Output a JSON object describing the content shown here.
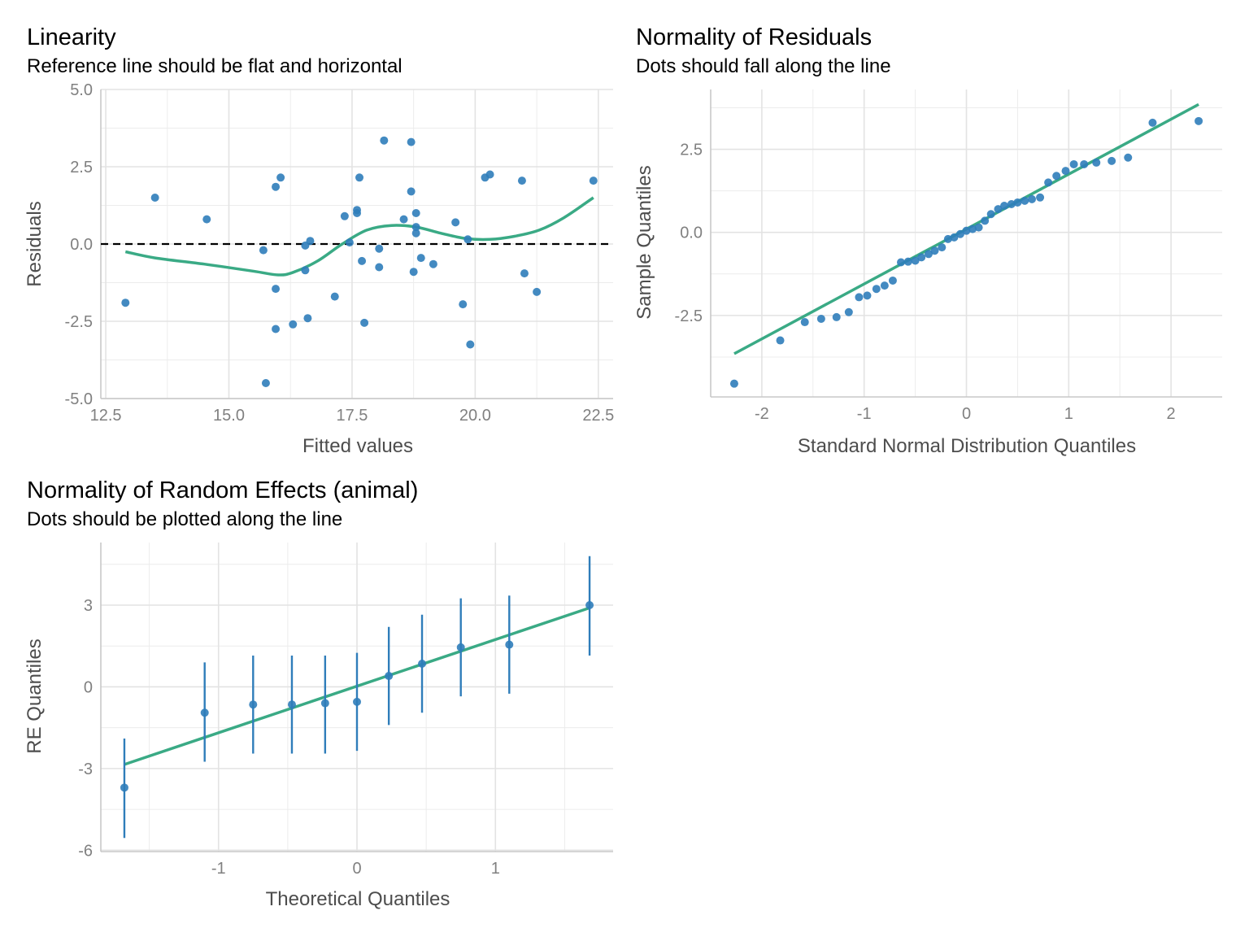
{
  "colors": {
    "points": "#2f7dba",
    "line": "#3aaa85",
    "errorbar": "#2f7dba",
    "reference": "#000000"
  },
  "chart_data": [
    {
      "type": "scatter",
      "title": "Linearity",
      "subtitle": "Reference line should be flat and horizontal",
      "xlabel": "Fitted values",
      "ylabel": "Residuals",
      "xlim": [
        12.4,
        22.8
      ],
      "ylim": [
        -5.0,
        5.0
      ],
      "xticks": [
        12.5,
        15.0,
        17.5,
        20.0,
        22.5
      ],
      "xtick_labels": [
        "12.5",
        "15.0",
        "17.5",
        "20.0",
        "22.5"
      ],
      "yticks": [
        -5.0,
        -2.5,
        0.0,
        2.5,
        5.0
      ],
      "ytick_labels": [
        "-5.0",
        "-2.5",
        "0.0",
        "2.5",
        "5.0"
      ],
      "reference_y": 0,
      "grid": true,
      "points": [
        {
          "x": 12.9,
          "y": -1.9
        },
        {
          "x": 13.5,
          "y": 1.5
        },
        {
          "x": 14.55,
          "y": 0.8
        },
        {
          "x": 15.7,
          "y": -0.2
        },
        {
          "x": 15.75,
          "y": -4.5
        },
        {
          "x": 15.95,
          "y": -1.45
        },
        {
          "x": 15.95,
          "y": -2.75
        },
        {
          "x": 15.95,
          "y": 1.85
        },
        {
          "x": 16.05,
          "y": 2.15
        },
        {
          "x": 16.3,
          "y": -2.6
        },
        {
          "x": 16.55,
          "y": -0.05
        },
        {
          "x": 16.55,
          "y": -0.85
        },
        {
          "x": 16.6,
          "y": -2.4
        },
        {
          "x": 16.65,
          "y": 0.1
        },
        {
          "x": 17.15,
          "y": -1.7
        },
        {
          "x": 17.35,
          "y": 0.9
        },
        {
          "x": 17.45,
          "y": 0.05
        },
        {
          "x": 17.6,
          "y": 1.0
        },
        {
          "x": 17.6,
          "y": 1.1
        },
        {
          "x": 17.65,
          "y": 2.15
        },
        {
          "x": 17.7,
          "y": -0.55
        },
        {
          "x": 17.75,
          "y": -2.55
        },
        {
          "x": 18.05,
          "y": -0.15
        },
        {
          "x": 18.05,
          "y": -0.75
        },
        {
          "x": 18.15,
          "y": 3.35
        },
        {
          "x": 18.55,
          "y": 0.8
        },
        {
          "x": 18.7,
          "y": 1.7
        },
        {
          "x": 18.7,
          "y": 3.3
        },
        {
          "x": 18.75,
          "y": -0.9
        },
        {
          "x": 18.8,
          "y": 1.0
        },
        {
          "x": 18.8,
          "y": 0.55
        },
        {
          "x": 18.8,
          "y": 0.35
        },
        {
          "x": 18.9,
          "y": -0.45
        },
        {
          "x": 19.15,
          "y": -0.65
        },
        {
          "x": 19.6,
          "y": 0.7
        },
        {
          "x": 19.75,
          "y": -1.95
        },
        {
          "x": 19.85,
          "y": 0.15
        },
        {
          "x": 19.9,
          "y": -3.25
        },
        {
          "x": 20.2,
          "y": 2.15
        },
        {
          "x": 20.3,
          "y": 2.25
        },
        {
          "x": 20.95,
          "y": 2.05
        },
        {
          "x": 21.0,
          "y": -0.95
        },
        {
          "x": 21.25,
          "y": -1.55
        },
        {
          "x": 22.4,
          "y": 2.05
        }
      ],
      "smooth_line": [
        {
          "x": 12.9,
          "y": -0.25
        },
        {
          "x": 13.5,
          "y": -0.45
        },
        {
          "x": 14.5,
          "y": -0.65
        },
        {
          "x": 15.5,
          "y": -0.88
        },
        {
          "x": 16.0,
          "y": -1.0
        },
        {
          "x": 16.3,
          "y": -0.92
        },
        {
          "x": 16.8,
          "y": -0.55
        },
        {
          "x": 17.3,
          "y": 0.0
        },
        {
          "x": 17.8,
          "y": 0.45
        },
        {
          "x": 18.3,
          "y": 0.6
        },
        {
          "x": 18.8,
          "y": 0.55
        },
        {
          "x": 19.3,
          "y": 0.35
        },
        {
          "x": 19.8,
          "y": 0.18
        },
        {
          "x": 20.3,
          "y": 0.15
        },
        {
          "x": 20.8,
          "y": 0.25
        },
        {
          "x": 21.3,
          "y": 0.45
        },
        {
          "x": 21.8,
          "y": 0.85
        },
        {
          "x": 22.4,
          "y": 1.5
        }
      ]
    },
    {
      "type": "scatter",
      "title": "Normality of Residuals",
      "subtitle": "Dots should fall along the line",
      "xlabel": "Standard Normal Distribution Quantiles",
      "ylabel": "Sample Quantiles",
      "xlim": [
        -2.5,
        2.5
      ],
      "ylim": [
        -4.95,
        4.3
      ],
      "xticks": [
        -2,
        -1,
        0,
        1,
        2
      ],
      "xtick_labels": [
        "-2",
        "-1",
        "0",
        "1",
        "2"
      ],
      "yticks": [
        -2.5,
        0.0,
        2.5
      ],
      "ytick_labels": [
        "-2.5",
        "0.0",
        "2.5"
      ],
      "grid": true,
      "points": [
        {
          "x": -2.27,
          "y": -4.55
        },
        {
          "x": -1.82,
          "y": -3.25
        },
        {
          "x": -1.58,
          "y": -2.7
        },
        {
          "x": -1.42,
          "y": -2.6
        },
        {
          "x": -1.27,
          "y": -2.55
        },
        {
          "x": -1.15,
          "y": -2.4
        },
        {
          "x": -1.05,
          "y": -1.95
        },
        {
          "x": -0.97,
          "y": -1.9
        },
        {
          "x": -0.88,
          "y": -1.7
        },
        {
          "x": -0.8,
          "y": -1.6
        },
        {
          "x": -0.72,
          "y": -1.45
        },
        {
          "x": -0.64,
          "y": -0.9
        },
        {
          "x": -0.57,
          "y": -0.88
        },
        {
          "x": -0.5,
          "y": -0.85
        },
        {
          "x": -0.44,
          "y": -0.75
        },
        {
          "x": -0.37,
          "y": -0.65
        },
        {
          "x": -0.31,
          "y": -0.55
        },
        {
          "x": -0.24,
          "y": -0.45
        },
        {
          "x": -0.18,
          "y": -0.2
        },
        {
          "x": -0.12,
          "y": -0.15
        },
        {
          "x": -0.06,
          "y": -0.05
        },
        {
          "x": 0.0,
          "y": 0.05
        },
        {
          "x": 0.06,
          "y": 0.1
        },
        {
          "x": 0.12,
          "y": 0.15
        },
        {
          "x": 0.18,
          "y": 0.35
        },
        {
          "x": 0.24,
          "y": 0.55
        },
        {
          "x": 0.31,
          "y": 0.7
        },
        {
          "x": 0.37,
          "y": 0.8
        },
        {
          "x": 0.44,
          "y": 0.85
        },
        {
          "x": 0.5,
          "y": 0.9
        },
        {
          "x": 0.57,
          "y": 0.95
        },
        {
          "x": 0.64,
          "y": 1.0
        },
        {
          "x": 0.72,
          "y": 1.05
        },
        {
          "x": 0.8,
          "y": 1.5
        },
        {
          "x": 0.88,
          "y": 1.7
        },
        {
          "x": 0.97,
          "y": 1.85
        },
        {
          "x": 1.05,
          "y": 2.05
        },
        {
          "x": 1.15,
          "y": 2.05
        },
        {
          "x": 1.27,
          "y": 2.1
        },
        {
          "x": 1.42,
          "y": 2.15
        },
        {
          "x": 1.58,
          "y": 2.25
        },
        {
          "x": 1.82,
          "y": 3.3
        },
        {
          "x": 2.27,
          "y": 3.35
        }
      ],
      "reference_line": [
        {
          "x": -2.27,
          "y": -3.65
        },
        {
          "x": 2.27,
          "y": 3.85
        }
      ]
    },
    {
      "type": "scatter",
      "title": "Normality of Random Effects (animal)",
      "subtitle": "Dots should be plotted along the line",
      "xlabel": "Theoretical Quantiles",
      "ylabel": "RE Quantiles",
      "xlim": [
        -1.85,
        1.85
      ],
      "ylim": [
        -6.05,
        5.3
      ],
      "xticks": [
        -1,
        0,
        1
      ],
      "xtick_labels": [
        "-1",
        "0",
        "1"
      ],
      "yticks": [
        -6,
        -3,
        0,
        3
      ],
      "ytick_labels": [
        "-6",
        "-3",
        "0",
        "3"
      ],
      "grid": true,
      "points": [
        {
          "x": -1.68,
          "y": -3.7,
          "lo": -5.55,
          "hi": -1.9
        },
        {
          "x": -1.1,
          "y": -0.95,
          "lo": -2.75,
          "hi": 0.9
        },
        {
          "x": -0.75,
          "y": -0.65,
          "lo": -2.45,
          "hi": 1.15
        },
        {
          "x": -0.47,
          "y": -0.65,
          "lo": -2.45,
          "hi": 1.15
        },
        {
          "x": -0.23,
          "y": -0.6,
          "lo": -2.45,
          "hi": 1.15
        },
        {
          "x": 0.0,
          "y": -0.55,
          "lo": -2.35,
          "hi": 1.25
        },
        {
          "x": 0.23,
          "y": 0.4,
          "lo": -1.4,
          "hi": 2.2
        },
        {
          "x": 0.47,
          "y": 0.85,
          "lo": -0.95,
          "hi": 2.65
        },
        {
          "x": 0.75,
          "y": 1.45,
          "lo": -0.35,
          "hi": 3.25
        },
        {
          "x": 1.1,
          "y": 1.55,
          "lo": -0.25,
          "hi": 3.35
        },
        {
          "x": 1.68,
          "y": 3.0,
          "lo": 1.15,
          "hi": 4.8
        }
      ],
      "reference_line": [
        {
          "x": -1.68,
          "y": -2.85
        },
        {
          "x": 1.68,
          "y": 2.9
        }
      ]
    }
  ]
}
